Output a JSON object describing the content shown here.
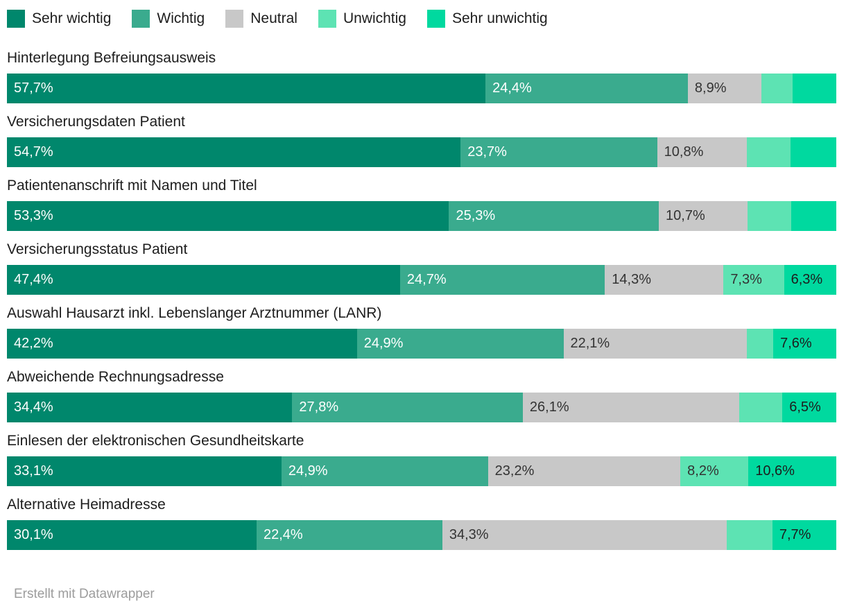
{
  "chart_data": {
    "type": "bar",
    "orientation": "horizontal-stacked",
    "unit": "%",
    "decimal_separator": ",",
    "xlim": [
      0,
      100
    ],
    "grid": false,
    "legend_position": "top",
    "legend": [
      "Sehr wichtig",
      "Wichtig",
      "Neutral",
      "Unwichtig",
      "Sehr unwichtig"
    ],
    "colors": [
      "#00876c",
      "#3aab8e",
      "#c8c8c8",
      "#5de3b3",
      "#00d99f"
    ],
    "label_text_colors": [
      "#ffffff",
      "#ffffff",
      "#333333",
      "#333333",
      "#1d1d1d"
    ],
    "categories": [
      "Hinterlegung Befreiungsausweis",
      "Versicherungsdaten Patient",
      "Patientenanschrift mit Namen und Titel",
      "Versicherungsstatus Patient",
      "Auswahl Hausarzt inkl. Lebenslanger Arztnummer (LANR)",
      "Abweichende Rechnungsadresse",
      "Einlesen der elektronischen Gesundheitskarte",
      "Alternative Heimadresse"
    ],
    "series": [
      {
        "name": "Sehr wichtig",
        "values": [
          57.7,
          54.7,
          53.3,
          47.4,
          42.2,
          34.4,
          33.1,
          30.1
        ]
      },
      {
        "name": "Wichtig",
        "values": [
          24.4,
          23.7,
          25.3,
          24.7,
          24.9,
          27.8,
          24.9,
          22.4
        ]
      },
      {
        "name": "Neutral",
        "values": [
          8.9,
          10.8,
          10.7,
          14.3,
          22.1,
          26.1,
          23.2,
          34.3
        ]
      },
      {
        "name": "Unwichtig",
        "values": [
          3.7,
          5.3,
          5.3,
          7.3,
          3.2,
          5.2,
          8.2,
          5.5
        ]
      },
      {
        "name": "Sehr unwichtig",
        "values": [
          5.3,
          5.5,
          5.4,
          6.3,
          7.6,
          6.5,
          10.6,
          7.7
        ]
      }
    ],
    "segment_labels": [
      [
        "57,7%",
        "24,4%",
        "8,9%",
        "",
        ""
      ],
      [
        "54,7%",
        "23,7%",
        "10,8%",
        "",
        ""
      ],
      [
        "53,3%",
        "25,3%",
        "10,7%",
        "",
        ""
      ],
      [
        "47,4%",
        "24,7%",
        "14,3%",
        "7,3%",
        "6,3%"
      ],
      [
        "42,2%",
        "24,9%",
        "22,1%",
        "",
        "7,6%"
      ],
      [
        "34,4%",
        "27,8%",
        "26,1%",
        "",
        "6,5%"
      ],
      [
        "33,1%",
        "24,9%",
        "23,2%",
        "8,2%",
        "10,6%"
      ],
      [
        "30,1%",
        "22,4%",
        "34,3%",
        "",
        "7,7%"
      ]
    ]
  },
  "footer": {
    "credit": "Erstellt mit Datawrapper"
  }
}
